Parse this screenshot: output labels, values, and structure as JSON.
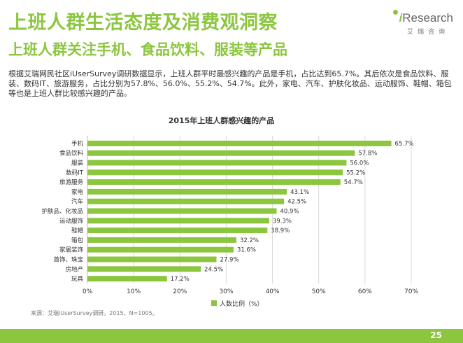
{
  "header": {
    "title": "上班人群生活态度及消费观洞察",
    "subtitle": "上班人群关注手机、食品饮料、服装等产品"
  },
  "logo": {
    "brand_i": "i",
    "brand_rest": "Research",
    "tagline": "艾瑞咨询"
  },
  "description": "根据艾瑞网民社区iUserSurvey调研数据显示，上班人群平时最感兴趣的产品是手机，占比达到65.7%。其后依次是食品饮料、服装、数码IT、旅游服务，占比分别为57.8%、56.0%、55.2%、54.7%。此外，家电、汽车、护肤化妆品、运动服饰、鞋帽、箱包等也是上班人群比较感兴趣的产品。",
  "chart_data": {
    "type": "bar",
    "orientation": "horizontal",
    "title": "2015年上班人群感兴趣的产品",
    "categories": [
      "手机",
      "食品饮料",
      "服装",
      "数码IT",
      "旅游服务",
      "家电",
      "汽车",
      "护肤品、化妆品",
      "运动服饰",
      "鞋帽",
      "箱包",
      "家居装饰",
      "首饰、珠宝",
      "房地产",
      "玩具"
    ],
    "series": [
      {
        "name": "人数比例（%）",
        "values": [
          65.7,
          57.8,
          56.0,
          55.2,
          54.7,
          43.1,
          42.5,
          40.9,
          39.3,
          38.9,
          32.2,
          31.6,
          27.9,
          24.5,
          17.2
        ],
        "labels": [
          "65.7%",
          "57.8%",
          "56.0%",
          "55.2%",
          "54.7%",
          "43.1%",
          "42.5%",
          "40.9%",
          "39.3%",
          "38.9%",
          "32.2%",
          "31.6%",
          "27.9%",
          "24.5%",
          "17.2%"
        ]
      }
    ],
    "xlim": [
      0,
      70
    ],
    "xticks": [
      0,
      10,
      20,
      30,
      40,
      50,
      60,
      70
    ],
    "xtick_labels": [
      "0%",
      "10%",
      "20%",
      "30%",
      "40%",
      "50%",
      "60%",
      "70%"
    ],
    "grid": true,
    "legend": "bottom",
    "bar_color": "#8cc63f"
  },
  "source": "来源：艾瑞iUserSurvey调研。2015，N=1005。",
  "page_number": "25"
}
